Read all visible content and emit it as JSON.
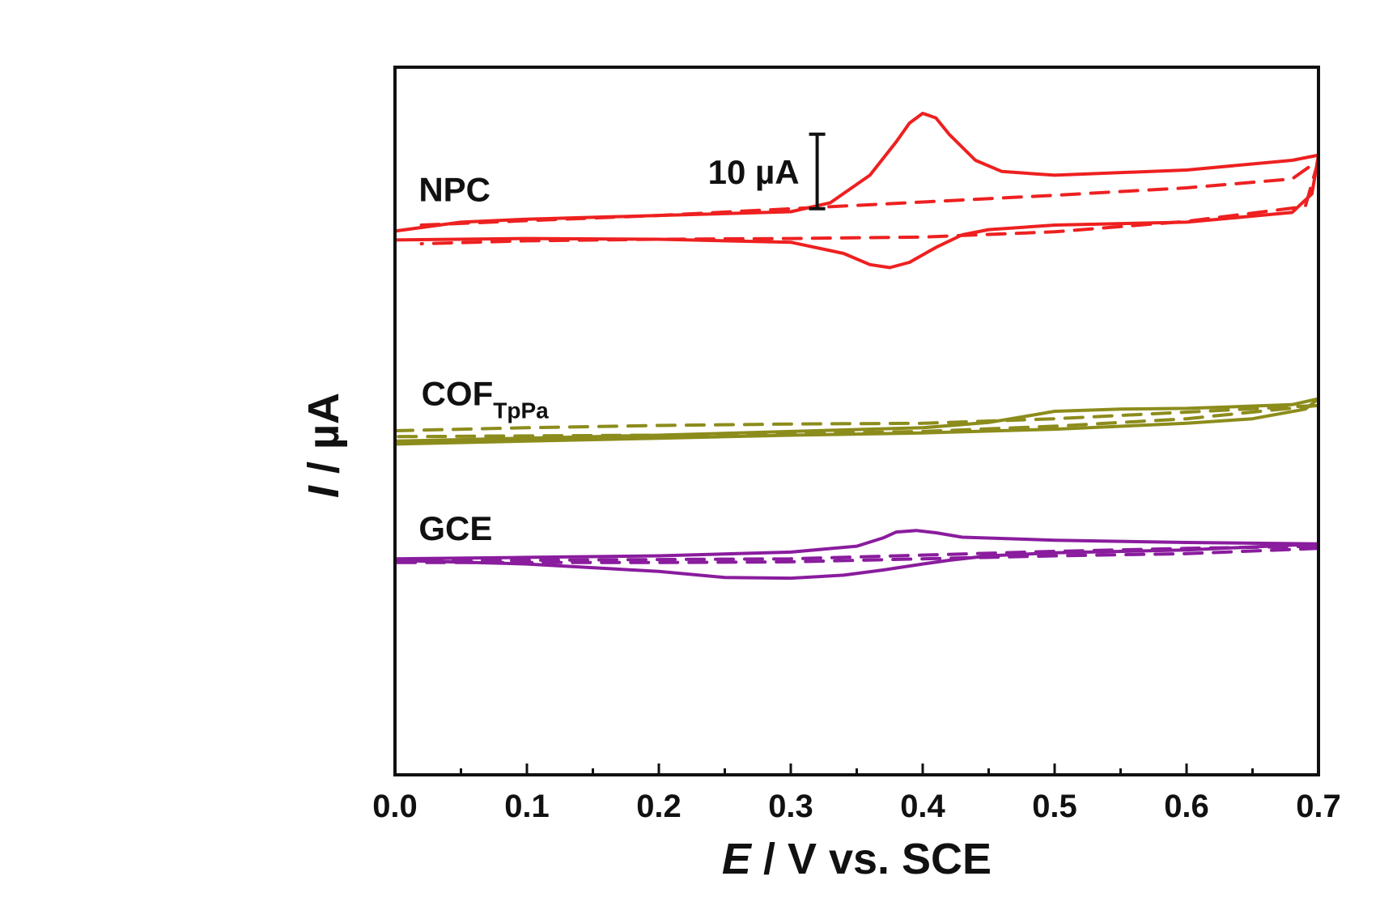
{
  "chart_data": {
    "type": "line",
    "title": "",
    "xlabel_italic": "E",
    "xlabel_rest": " / V vs. SCE",
    "ylabel_italic": "I",
    "ylabel_rest": " / µA",
    "xlim": [
      0.0,
      0.7
    ],
    "ylim": [
      -45,
      50
    ],
    "x_ticks": [
      "0.0",
      "0.1",
      "0.2",
      "0.3",
      "0.4",
      "0.5",
      "0.6",
      "0.7"
    ],
    "y_ticks_shown": false,
    "scale_bar": {
      "label": "10 µA",
      "value": 10,
      "x": 0.32,
      "y_center": 36
    },
    "series": [
      {
        "name": "NPC",
        "label_main": "NPC",
        "label_sub": "",
        "color": "#ee2020",
        "label_pos": {
          "x": 0.018,
          "y": 32
        },
        "solid_forward": [
          [
            0,
            28
          ],
          [
            0.05,
            29.2
          ],
          [
            0.1,
            29.6
          ],
          [
            0.2,
            30.1
          ],
          [
            0.3,
            30.6
          ],
          [
            0.33,
            31.8
          ],
          [
            0.36,
            35.5
          ],
          [
            0.38,
            40
          ],
          [
            0.39,
            42.5
          ],
          [
            0.4,
            43.8
          ],
          [
            0.41,
            43.2
          ],
          [
            0.42,
            41
          ],
          [
            0.44,
            37.5
          ],
          [
            0.46,
            36
          ],
          [
            0.5,
            35.5
          ],
          [
            0.6,
            36.2
          ],
          [
            0.68,
            37.5
          ],
          [
            0.7,
            38.2
          ]
        ],
        "solid_reverse": [
          [
            0.7,
            38.2
          ],
          [
            0.695,
            33
          ],
          [
            0.68,
            30.5
          ],
          [
            0.6,
            29.2
          ],
          [
            0.5,
            28.8
          ],
          [
            0.45,
            28.2
          ],
          [
            0.43,
            27.5
          ],
          [
            0.41,
            25.8
          ],
          [
            0.39,
            23.8
          ],
          [
            0.375,
            23.1
          ],
          [
            0.36,
            23.5
          ],
          [
            0.34,
            25
          ],
          [
            0.3,
            26.5
          ],
          [
            0.2,
            26.9
          ],
          [
            0.1,
            27
          ],
          [
            0.0,
            26.8
          ],
          [
            0,
            28
          ]
        ],
        "dashed_forward": [
          [
            0.02,
            28.8
          ],
          [
            0.1,
            29.4
          ],
          [
            0.2,
            30.1
          ],
          [
            0.3,
            31
          ],
          [
            0.4,
            31.9
          ],
          [
            0.5,
            32.8
          ],
          [
            0.6,
            33.8
          ],
          [
            0.68,
            35
          ],
          [
            0.7,
            37.5
          ]
        ],
        "dashed_reverse": [
          [
            0.7,
            37.5
          ],
          [
            0.69,
            31.3
          ],
          [
            0.6,
            29.3
          ],
          [
            0.5,
            27.9
          ],
          [
            0.4,
            27.2
          ],
          [
            0.3,
            27
          ],
          [
            0.2,
            26.9
          ],
          [
            0.1,
            26.7
          ],
          [
            0.02,
            26.3
          ]
        ]
      },
      {
        "name": "COF_TpPa",
        "label_main": "COF",
        "label_sub": "TpPa",
        "color": "#8c8c1c",
        "label_pos": {
          "x": 0.02,
          "y": 4.6
        },
        "solid_forward": [
          [
            0,
            -0.2
          ],
          [
            0.1,
            0.2
          ],
          [
            0.2,
            0.6
          ],
          [
            0.3,
            1.1
          ],
          [
            0.4,
            1.6
          ],
          [
            0.45,
            2.3
          ],
          [
            0.48,
            3.2
          ],
          [
            0.5,
            3.8
          ],
          [
            0.55,
            4.1
          ],
          [
            0.6,
            4.2
          ],
          [
            0.68,
            4.7
          ],
          [
            0.7,
            5.5
          ]
        ],
        "solid_reverse": [
          [
            0.7,
            5.5
          ],
          [
            0.69,
            4.1
          ],
          [
            0.65,
            2.8
          ],
          [
            0.6,
            2.2
          ],
          [
            0.5,
            1.4
          ],
          [
            0.4,
            0.9
          ],
          [
            0.3,
            0.6
          ],
          [
            0.2,
            0.2
          ],
          [
            0.1,
            -0.2
          ],
          [
            0.0,
            -0.6
          ],
          [
            0,
            -0.2
          ]
        ],
        "dashed_forward": [
          [
            0,
            1.2
          ],
          [
            0.1,
            1.6
          ],
          [
            0.2,
            1.9
          ],
          [
            0.3,
            2.1
          ],
          [
            0.4,
            2.2
          ],
          [
            0.5,
            2.8
          ],
          [
            0.6,
            3.7
          ],
          [
            0.7,
            4.6
          ]
        ],
        "dashed_reverse": [
          [
            0.7,
            4.6
          ],
          [
            0.6,
            2.8
          ],
          [
            0.5,
            1.8
          ],
          [
            0.4,
            1.1
          ],
          [
            0.3,
            0.8
          ],
          [
            0.2,
            0.6
          ],
          [
            0.1,
            0.5
          ],
          [
            0,
            0.4
          ]
        ]
      },
      {
        "name": "GCE",
        "label_main": "GCE",
        "label_sub": "",
        "color": "#8a1c9e",
        "label_pos": {
          "x": 0.018,
          "y": -13.5
        },
        "solid_forward": [
          [
            0,
            -16
          ],
          [
            0.1,
            -15.8
          ],
          [
            0.2,
            -15.6
          ],
          [
            0.3,
            -15.1
          ],
          [
            0.35,
            -14.3
          ],
          [
            0.37,
            -13.2
          ],
          [
            0.38,
            -12.4
          ],
          [
            0.395,
            -12.2
          ],
          [
            0.41,
            -12.5
          ],
          [
            0.43,
            -13.1
          ],
          [
            0.5,
            -13.5
          ],
          [
            0.6,
            -13.8
          ],
          [
            0.7,
            -14
          ]
        ],
        "solid_reverse": [
          [
            0.7,
            -14
          ],
          [
            0.6,
            -14.8
          ],
          [
            0.5,
            -15.2
          ],
          [
            0.45,
            -15.6
          ],
          [
            0.42,
            -16.2
          ],
          [
            0.4,
            -16.7
          ],
          [
            0.37,
            -17.5
          ],
          [
            0.34,
            -18.2
          ],
          [
            0.3,
            -18.6
          ],
          [
            0.25,
            -18.5
          ],
          [
            0.2,
            -17.7
          ],
          [
            0.1,
            -16.7
          ],
          [
            0,
            -16.2
          ]
        ],
        "dashed_forward": [
          [
            0,
            -16.3
          ],
          [
            0.1,
            -16.2
          ],
          [
            0.2,
            -16.1
          ],
          [
            0.3,
            -16
          ],
          [
            0.4,
            -15.5
          ],
          [
            0.5,
            -15
          ],
          [
            0.6,
            -14.6
          ],
          [
            0.7,
            -14.3
          ]
        ],
        "dashed_reverse": [
          [
            0.7,
            -14.6
          ],
          [
            0.6,
            -15.3
          ],
          [
            0.5,
            -15.6
          ],
          [
            0.4,
            -16
          ],
          [
            0.3,
            -16.4
          ],
          [
            0.2,
            -16.5
          ],
          [
            0.1,
            -16.5
          ],
          [
            0,
            -16.5
          ]
        ]
      }
    ]
  }
}
